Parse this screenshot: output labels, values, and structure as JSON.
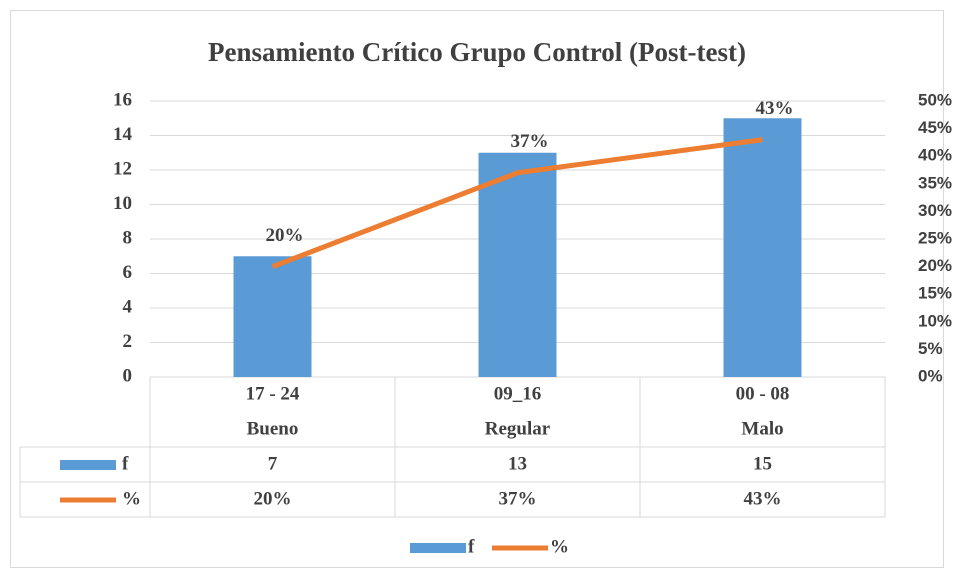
{
  "chart_data": {
    "type": "bar",
    "title": "Pensamiento Crítico Grupo Control (Post-test)",
    "categories": [
      "17 - 24",
      "09_16",
      "00 - 08"
    ],
    "subcategories": [
      "Bueno",
      "Regular",
      "Malo"
    ],
    "series": [
      {
        "name": "f",
        "type": "bar",
        "color": "#5b9bd5",
        "values": [
          7,
          13,
          15
        ]
      },
      {
        "name": "%",
        "type": "line",
        "axis": "y2",
        "color": "#ed7d31",
        "values": [
          20,
          37,
          43
        ],
        "value_labels": [
          "20%",
          "37%",
          "43%"
        ]
      }
    ],
    "ylim": [
      0,
      16
    ],
    "yticks": [
      0,
      2,
      4,
      6,
      8,
      10,
      12,
      14,
      16
    ],
    "y2lim": [
      0,
      50
    ],
    "y2ticks": [
      {
        "value": 0,
        "label": "0%"
      },
      {
        "value": 5,
        "label": "5%"
      },
      {
        "value": 10,
        "label": "10%"
      },
      {
        "value": 15,
        "label": "15%"
      },
      {
        "value": 20,
        "label": "20%"
      },
      {
        "value": 25,
        "label": "25%"
      },
      {
        "value": 30,
        "label": "30%"
      },
      {
        "value": 35,
        "label": "35%"
      },
      {
        "value": 40,
        "label": "40%"
      },
      {
        "value": 45,
        "label": "45%"
      },
      {
        "value": 50,
        "label": "50%"
      }
    ],
    "grid": true,
    "legend": "bottom",
    "data_table": true
  }
}
